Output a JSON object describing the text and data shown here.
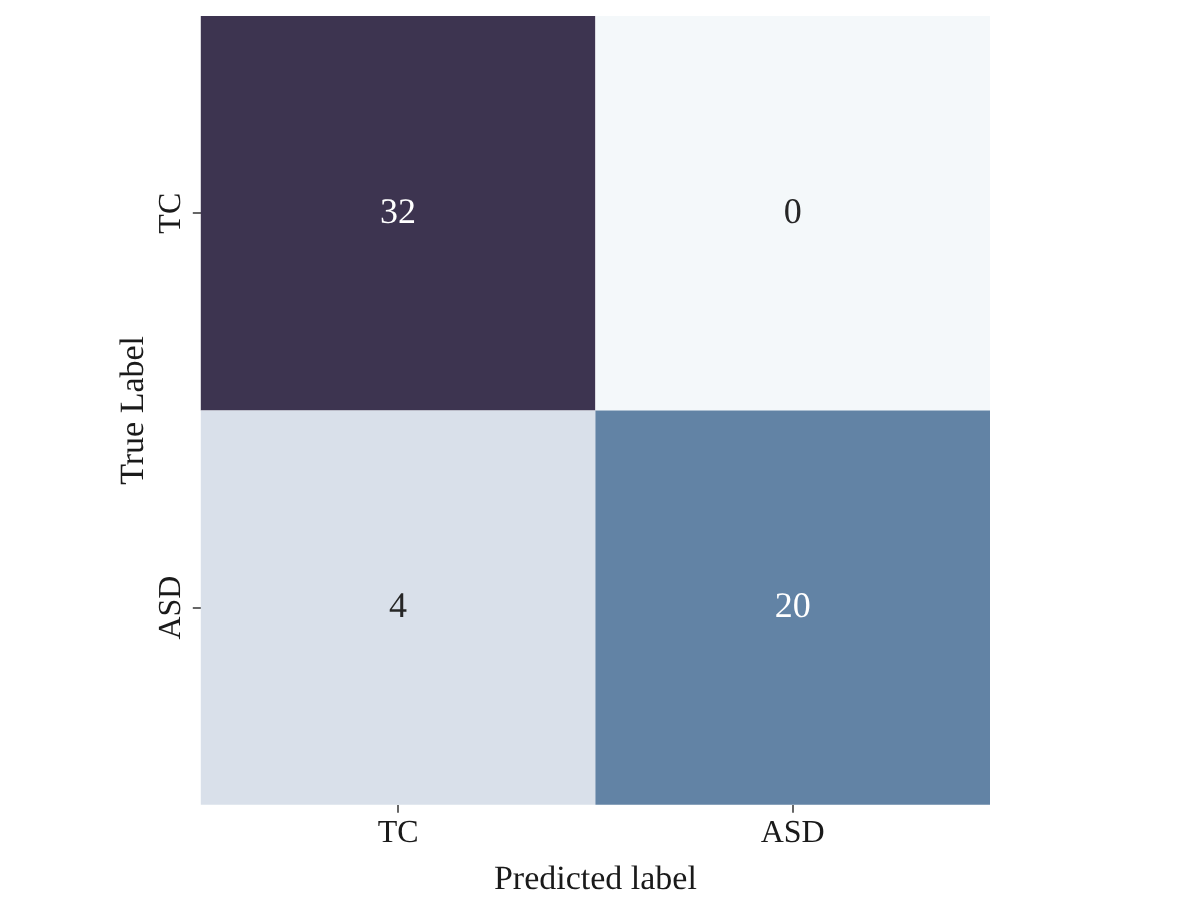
{
  "chart_data": {
    "type": "heatmap",
    "categories": [
      "TC",
      "ASD"
    ],
    "y_categories": [
      "TC",
      "ASD"
    ],
    "cells": [
      [
        32,
        0
      ],
      [
        4,
        20
      ]
    ],
    "colors": [
      "#3d3450",
      "#f4f8fa",
      "#d9e0ea",
      "#6283a5"
    ],
    "xlabel": "Predicted label",
    "ylabel": "True Label",
    "data_labels": true
  }
}
